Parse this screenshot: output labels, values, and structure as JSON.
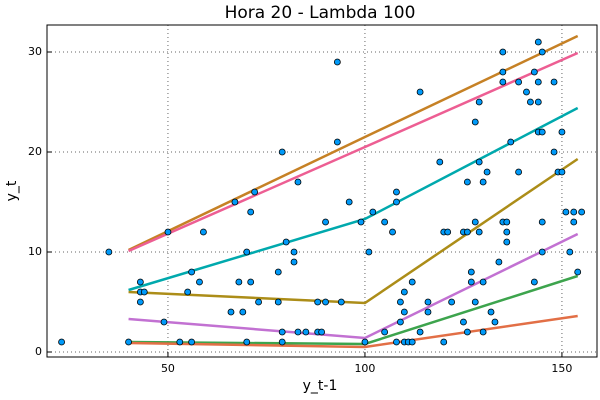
{
  "chart_data": {
    "type": "scatter",
    "title": "Hora 20 - Lambda 100",
    "x_label": "y_t-1",
    "y_label": "y_t",
    "xlim": [
      19.3,
      158.9
    ],
    "ylim": [
      -0.5,
      32.7
    ],
    "xticks": [
      50,
      100,
      150
    ],
    "yticks": [
      0,
      10,
      20,
      30
    ],
    "grid": true,
    "series": [
      {
        "type": "scatter",
        "color": "#009af9",
        "x": [
          23,
          35,
          40,
          43,
          43,
          44,
          43,
          49,
          50,
          53,
          55,
          56,
          56,
          58,
          59,
          66,
          67,
          68,
          69,
          70,
          70,
          71,
          71,
          72,
          73,
          78,
          78,
          79,
          79,
          80,
          79,
          82,
          82,
          83,
          83,
          85,
          88,
          88,
          89,
          90,
          90,
          93,
          93,
          94,
          96,
          99,
          100,
          101,
          102,
          105,
          105,
          107,
          108,
          108,
          108,
          109,
          109,
          110,
          110,
          110,
          111,
          112,
          112,
          114,
          114,
          116,
          116,
          119,
          120,
          120,
          121,
          122,
          125,
          125,
          126,
          126,
          126,
          127,
          127,
          128,
          128,
          129,
          128,
          129,
          129,
          130,
          131,
          130,
          130,
          132,
          133,
          134,
          135,
          135,
          135,
          135,
          136,
          136,
          137,
          136,
          139,
          139,
          141,
          142,
          143,
          143,
          144,
          144,
          144,
          144,
          145,
          145,
          145,
          145,
          148,
          148,
          149,
          150,
          150,
          151,
          152,
          153,
          154,
          153,
          155
        ],
        "values": [
          1,
          10,
          1,
          7,
          6,
          6,
          5,
          3,
          12,
          1,
          6,
          8,
          1,
          7,
          12,
          4,
          15,
          7,
          4,
          10,
          1,
          14,
          7,
          16,
          5,
          5,
          8,
          20,
          2,
          11,
          1,
          9,
          10,
          17,
          2,
          2,
          5,
          2,
          2,
          5,
          13,
          29,
          21,
          5,
          15,
          13,
          1,
          10,
          14,
          2,
          13,
          12,
          15,
          16,
          1,
          5,
          3,
          6,
          1,
          4,
          1,
          1,
          7,
          26,
          2,
          5,
          4,
          19,
          1,
          12,
          12,
          5,
          3,
          12,
          2,
          12,
          17,
          8,
          7,
          23,
          5,
          19,
          13,
          12,
          25,
          17,
          18,
          7,
          2,
          4,
          3,
          9,
          28,
          13,
          30,
          27,
          12,
          11,
          21,
          13,
          18,
          27,
          26,
          25,
          7,
          28,
          31,
          25,
          22,
          27,
          10,
          30,
          13,
          22,
          27,
          20,
          18,
          18,
          22,
          14,
          10,
          14,
          8,
          13,
          14
        ]
      },
      {
        "type": "line",
        "color": "#c68125",
        "x": [
          40,
          100,
          154
        ],
        "values": [
          10.2,
          21.5,
          31.6
        ]
      },
      {
        "type": "line",
        "color": "#ed5e93",
        "x": [
          40,
          100,
          154
        ],
        "values": [
          10.1,
          20.5,
          29.9
        ]
      },
      {
        "type": "line",
        "color": "#00a9ad",
        "x": [
          40,
          100,
          154
        ],
        "values": [
          6.2,
          13.3,
          24.4
        ]
      },
      {
        "type": "line",
        "color": "#ac8d18",
        "x": [
          40,
          100,
          154
        ],
        "values": [
          6,
          4.9,
          19.3
        ]
      },
      {
        "type": "line",
        "color": "#c271d2",
        "x": [
          40,
          100,
          154
        ],
        "values": [
          3.3,
          1.4,
          11.8
        ]
      },
      {
        "type": "line",
        "color": "#3da44d",
        "x": [
          40,
          100,
          154
        ],
        "values": [
          1,
          0.8,
          7.6
        ]
      },
      {
        "type": "line",
        "color": "#e26f46",
        "x": [
          40,
          100,
          154
        ],
        "values": [
          0.9,
          0.5,
          3.6
        ]
      }
    ]
  }
}
